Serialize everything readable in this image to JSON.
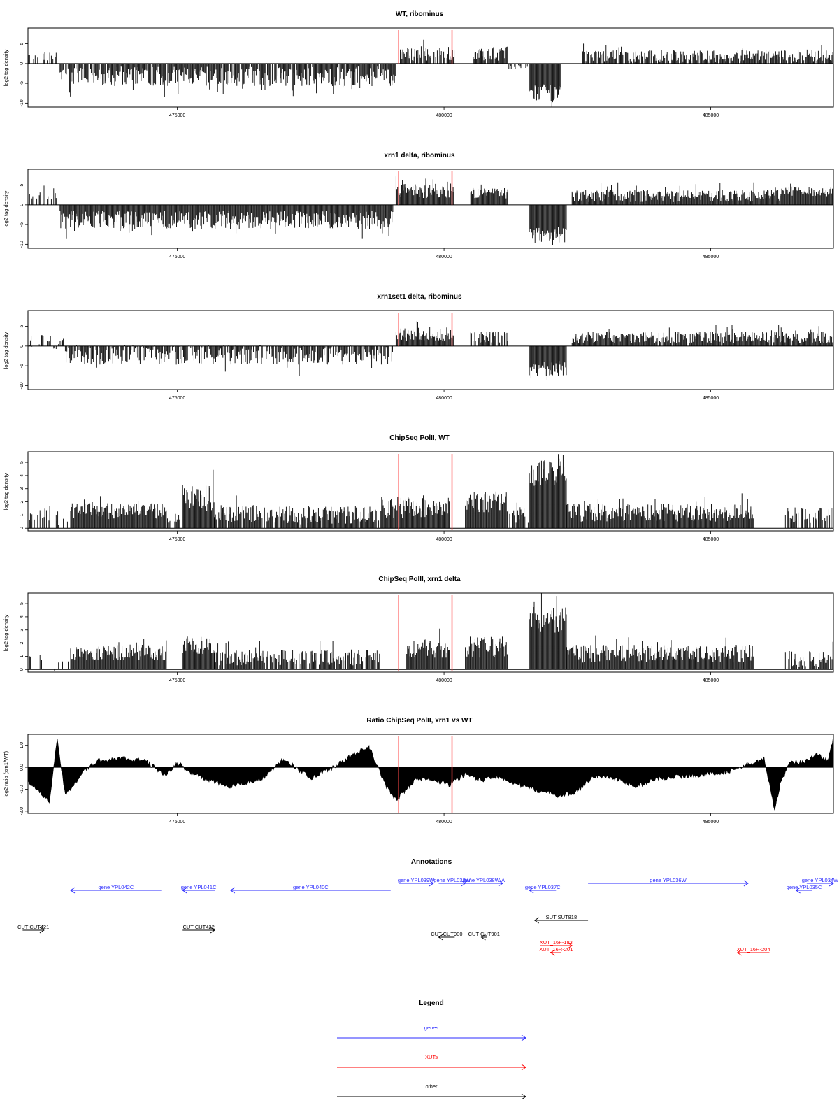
{
  "colors": {
    "signal": "#000000",
    "marker": "#ff4a4a",
    "gene": "#2b2bff",
    "xut": "#ff0000",
    "other": "#000000"
  },
  "x_axis": {
    "range": [
      472200,
      487300
    ],
    "ticks": [
      475000,
      480000,
      485000
    ],
    "tick_labels": [
      "475000",
      "480000",
      "485000"
    ]
  },
  "markers_x": [
    479150,
    480150
  ],
  "chart_data": [
    {
      "type": "bar",
      "title": "WT, ribominus",
      "ylabel": "log2 tag density",
      "ylim": [
        -11,
        9
      ],
      "yticks": [
        -10,
        -5,
        0,
        5
      ],
      "ytick_labels": [
        "-10",
        "-5",
        "0",
        "5"
      ],
      "segments": [
        {
          "x": [
            472200,
            472800
          ],
          "mean": 1.5,
          "amp": 1.5,
          "density": 0.35
        },
        {
          "x": [
            472800,
            479100
          ],
          "mean": -3.2,
          "amp": 2.5,
          "density": 0.9
        },
        {
          "x": [
            479150,
            480200
          ],
          "mean": 2.5,
          "amp": 1.8,
          "density": 0.9
        },
        {
          "x": [
            480550,
            481200
          ],
          "mean": 2.5,
          "amp": 1.8,
          "density": 0.9
        },
        {
          "x": [
            481200,
            481600
          ],
          "mean": -0.6,
          "amp": 0.8,
          "density": 0.5
        },
        {
          "x": [
            481600,
            482200
          ],
          "mean": -7.5,
          "amp": 2.3,
          "density": 1.0
        },
        {
          "x": [
            482600,
            487300
          ],
          "mean": 2.0,
          "amp": 1.5,
          "density": 0.85
        }
      ]
    },
    {
      "type": "bar",
      "title": "xrn1 delta, ribominus",
      "ylabel": "log2 tag density",
      "ylim": [
        -11,
        9
      ],
      "yticks": [
        -10,
        -5,
        0,
        5
      ],
      "ytick_labels": [
        "-10",
        "-5",
        "0",
        "5"
      ],
      "segments": [
        {
          "x": [
            472200,
            472800
          ],
          "mean": 1.8,
          "amp": 1.5,
          "density": 0.5
        },
        {
          "x": [
            472800,
            479050
          ],
          "mean": -3.8,
          "amp": 2.3,
          "density": 1.0
        },
        {
          "x": [
            479100,
            480200
          ],
          "mean": 3.5,
          "amp": 1.8,
          "density": 1.0
        },
        {
          "x": [
            480500,
            481200
          ],
          "mean": 2.8,
          "amp": 1.5,
          "density": 1.0
        },
        {
          "x": [
            481600,
            482300
          ],
          "mean": -7.5,
          "amp": 2.2,
          "density": 1.0
        },
        {
          "x": [
            482400,
            486300
          ],
          "mean": 2.3,
          "amp": 1.6,
          "density": 1.0
        },
        {
          "x": [
            486300,
            487300
          ],
          "mean": 3.3,
          "amp": 1.3,
          "density": 1.0
        }
      ]
    },
    {
      "type": "bar",
      "title": "xrn1set1 delta, ribominus",
      "ylabel": "log2 tag density",
      "ylim": [
        -11,
        9
      ],
      "yticks": [
        -10,
        -5,
        0,
        5
      ],
      "ytick_labels": [
        "-10",
        "-5",
        "0",
        "5"
      ],
      "segments": [
        {
          "x": [
            472200,
            472900
          ],
          "mean": 1.0,
          "amp": 1.8,
          "density": 0.5
        },
        {
          "x": [
            472900,
            479050
          ],
          "mean": -2.2,
          "amp": 2.5,
          "density": 0.85
        },
        {
          "x": [
            479100,
            480200
          ],
          "mean": 3.0,
          "amp": 1.8,
          "density": 1.0
        },
        {
          "x": [
            480500,
            481200
          ],
          "mean": 2.3,
          "amp": 1.5,
          "density": 0.85
        },
        {
          "x": [
            481600,
            482300
          ],
          "mean": -5.5,
          "amp": 2.0,
          "density": 1.0
        },
        {
          "x": [
            482400,
            487300
          ],
          "mean": 2.2,
          "amp": 1.5,
          "density": 0.95
        }
      ]
    },
    {
      "type": "bar",
      "title": "ChipSeq PolII, WT",
      "ylabel": "log2 tag density",
      "ylim": [
        -0.2,
        5.8
      ],
      "yticks": [
        0,
        1,
        2,
        3,
        4,
        5
      ],
      "ytick_labels": [
        "0",
        "1",
        "2",
        "3",
        "4",
        "5"
      ],
      "segments": [
        {
          "x": [
            472200,
            473000
          ],
          "mean": 1.0,
          "amp": 0.8,
          "density": 0.35
        },
        {
          "x": [
            473000,
            474800
          ],
          "mean": 1.3,
          "amp": 0.6,
          "density": 1.0
        },
        {
          "x": [
            474800,
            475100
          ],
          "mean": 0.7,
          "amp": 0.5,
          "density": 0.5
        },
        {
          "x": [
            475100,
            475700
          ],
          "mean": 2.3,
          "amp": 1.0,
          "density": 1.0
        },
        {
          "x": [
            475700,
            478800
          ],
          "mean": 1.0,
          "amp": 0.7,
          "density": 0.9
        },
        {
          "x": [
            478800,
            480100
          ],
          "mean": 1.6,
          "amp": 0.8,
          "density": 1.0
        },
        {
          "x": [
            480400,
            481200
          ],
          "mean": 2.0,
          "amp": 0.8,
          "density": 1.0
        },
        {
          "x": [
            481200,
            481600
          ],
          "mean": 0.9,
          "amp": 0.6,
          "density": 0.7
        },
        {
          "x": [
            481600,
            482300
          ],
          "mean": 4.2,
          "amp": 1.0,
          "density": 1.0
        },
        {
          "x": [
            482300,
            485800
          ],
          "mean": 1.2,
          "amp": 0.7,
          "density": 1.0
        },
        {
          "x": [
            486400,
            487300
          ],
          "mean": 1.0,
          "amp": 0.6,
          "density": 0.7
        }
      ]
    },
    {
      "type": "bar",
      "title": "ChipSeq PolII, xrn1 delta",
      "ylabel": "log2 tag density",
      "ylim": [
        -0.2,
        5.8
      ],
      "yticks": [
        0,
        1,
        2,
        3,
        4,
        5
      ],
      "ytick_labels": [
        "0",
        "1",
        "2",
        "3",
        "4",
        "5"
      ],
      "segments": [
        {
          "x": [
            472200,
            473000
          ],
          "mean": 0.5,
          "amp": 0.6,
          "density": 0.3
        },
        {
          "x": [
            473000,
            474800
          ],
          "mean": 1.3,
          "amp": 0.6,
          "density": 1.0
        },
        {
          "x": [
            475100,
            475700
          ],
          "mean": 1.8,
          "amp": 0.7,
          "density": 1.0
        },
        {
          "x": [
            475700,
            478800
          ],
          "mean": 0.9,
          "amp": 0.6,
          "density": 0.8
        },
        {
          "x": [
            479300,
            480100
          ],
          "mean": 1.6,
          "amp": 0.7,
          "density": 1.0
        },
        {
          "x": [
            480400,
            481200
          ],
          "mean": 1.7,
          "amp": 0.8,
          "density": 1.0
        },
        {
          "x": [
            481600,
            482300
          ],
          "mean": 3.8,
          "amp": 1.0,
          "density": 1.0
        },
        {
          "x": [
            482300,
            485800
          ],
          "mean": 1.2,
          "amp": 0.7,
          "density": 1.0
        },
        {
          "x": [
            486400,
            487300
          ],
          "mean": 0.8,
          "amp": 0.6,
          "density": 0.8
        }
      ]
    },
    {
      "type": "area",
      "title": "Ratio ChipSeq PolII, xrn1 vs WT",
      "ylabel": "log2 ratio (xrn1/WT)",
      "ylim": [
        -2.1,
        1.5
      ],
      "yticks": [
        -2,
        -1,
        0,
        1
      ],
      "ytick_labels": [
        "-2.0",
        "-1.0",
        "0.0",
        "1.0"
      ],
      "x": [
        472200,
        472600,
        472700,
        472750,
        472900,
        473200,
        473500,
        474000,
        474400,
        474800,
        475000,
        475300,
        475600,
        476000,
        476600,
        477000,
        477500,
        478000,
        478300,
        478600,
        478900,
        479100,
        479500,
        479800,
        480100,
        480400,
        480700,
        481000,
        481400,
        481800,
        482200,
        482500,
        482800,
        483200,
        483600,
        484000,
        484500,
        485000,
        485300,
        485700,
        486000,
        486200,
        486300,
        486500,
        486700,
        487000,
        487200,
        487300
      ],
      "y": [
        -0.6,
        -1.6,
        0.4,
        1.2,
        -1.3,
        -0.3,
        0.3,
        0.4,
        0.3,
        -0.4,
        0.2,
        -0.3,
        -0.6,
        -0.9,
        -0.5,
        0.4,
        -0.5,
        0.1,
        0.6,
        0.9,
        -0.8,
        -1.5,
        -0.5,
        -0.6,
        -0.8,
        -0.3,
        -0.6,
        -0.4,
        -0.8,
        -1.1,
        -1.3,
        -1.1,
        -0.4,
        -0.5,
        -0.9,
        -0.5,
        -0.4,
        -0.3,
        -0.2,
        0.1,
        0.4,
        -2.0,
        -0.8,
        0.3,
        0.2,
        0.6,
        0.3,
        1.4
      ]
    }
  ],
  "annotations": {
    "title": "Annotations",
    "genes": [
      {
        "label": "gene YPL042C",
        "x": [
          473000,
          474700
        ],
        "dir": "left",
        "row": 1
      },
      {
        "label": "gene YPL041C",
        "x": [
          475100,
          475700
        ],
        "dir": "left",
        "row": 1
      },
      {
        "label": "gene YPL040C",
        "x": [
          476000,
          479000
        ],
        "dir": "left",
        "row": 1
      },
      {
        "label": "gene YPL039W",
        "x": [
          479150,
          479800
        ],
        "dir": "right",
        "row": 0
      },
      {
        "label": "gene YPL038W",
        "x": [
          479900,
          480400
        ],
        "dir": "right",
        "row": 0
      },
      {
        "label": "gene YPL038W-A",
        "x": [
          480400,
          481100
        ],
        "dir": "right",
        "row": 0
      },
      {
        "label": "gene YPL037C",
        "x": [
          481600,
          482100
        ],
        "dir": "left",
        "row": 1
      },
      {
        "label": "gene YPL036W",
        "x": [
          482700,
          485700
        ],
        "dir": "right",
        "row": 0
      },
      {
        "label": "gene YPL035C",
        "x": [
          486600,
          486900
        ],
        "dir": "left",
        "row": 1
      },
      {
        "label": "gene YPL034W",
        "x": [
          486800,
          487300
        ],
        "dir": "right",
        "row": 0
      }
    ],
    "others": [
      {
        "label": "CUT CUT421",
        "x": [
          472100,
          472500
        ],
        "dir": "right",
        "row": 0
      },
      {
        "label": "CUT CUT422",
        "x": [
          475100,
          475700
        ],
        "dir": "right",
        "row": 0
      },
      {
        "label": "SUT SUT818",
        "x": [
          481700,
          482700
        ],
        "dir": "left",
        "row": -1
      },
      {
        "label": "CUT CUT900",
        "x": [
          479900,
          480200
        ],
        "dir": "left",
        "row": 1
      },
      {
        "label": "CUT CUT901",
        "x": [
          480700,
          480800
        ],
        "dir": "left",
        "row": 1
      }
    ],
    "xuts": [
      {
        "label": "XUT_16F-183",
        "x": [
          481800,
          482400
        ],
        "dir": "right",
        "row": 0
      },
      {
        "label": "XUT_16R-201",
        "x": [
          482000,
          482200
        ],
        "dir": "left",
        "row": 1
      },
      {
        "label": "XUT_16R-204",
        "x": [
          485500,
          486100
        ],
        "dir": "left",
        "row": 1
      }
    ]
  },
  "legend": {
    "title": "Legend",
    "items": [
      {
        "label": "genes",
        "color": "#2b2bff"
      },
      {
        "label": "XUTs",
        "color": "#ff0000"
      },
      {
        "label": "other",
        "color": "#000000"
      }
    ]
  }
}
